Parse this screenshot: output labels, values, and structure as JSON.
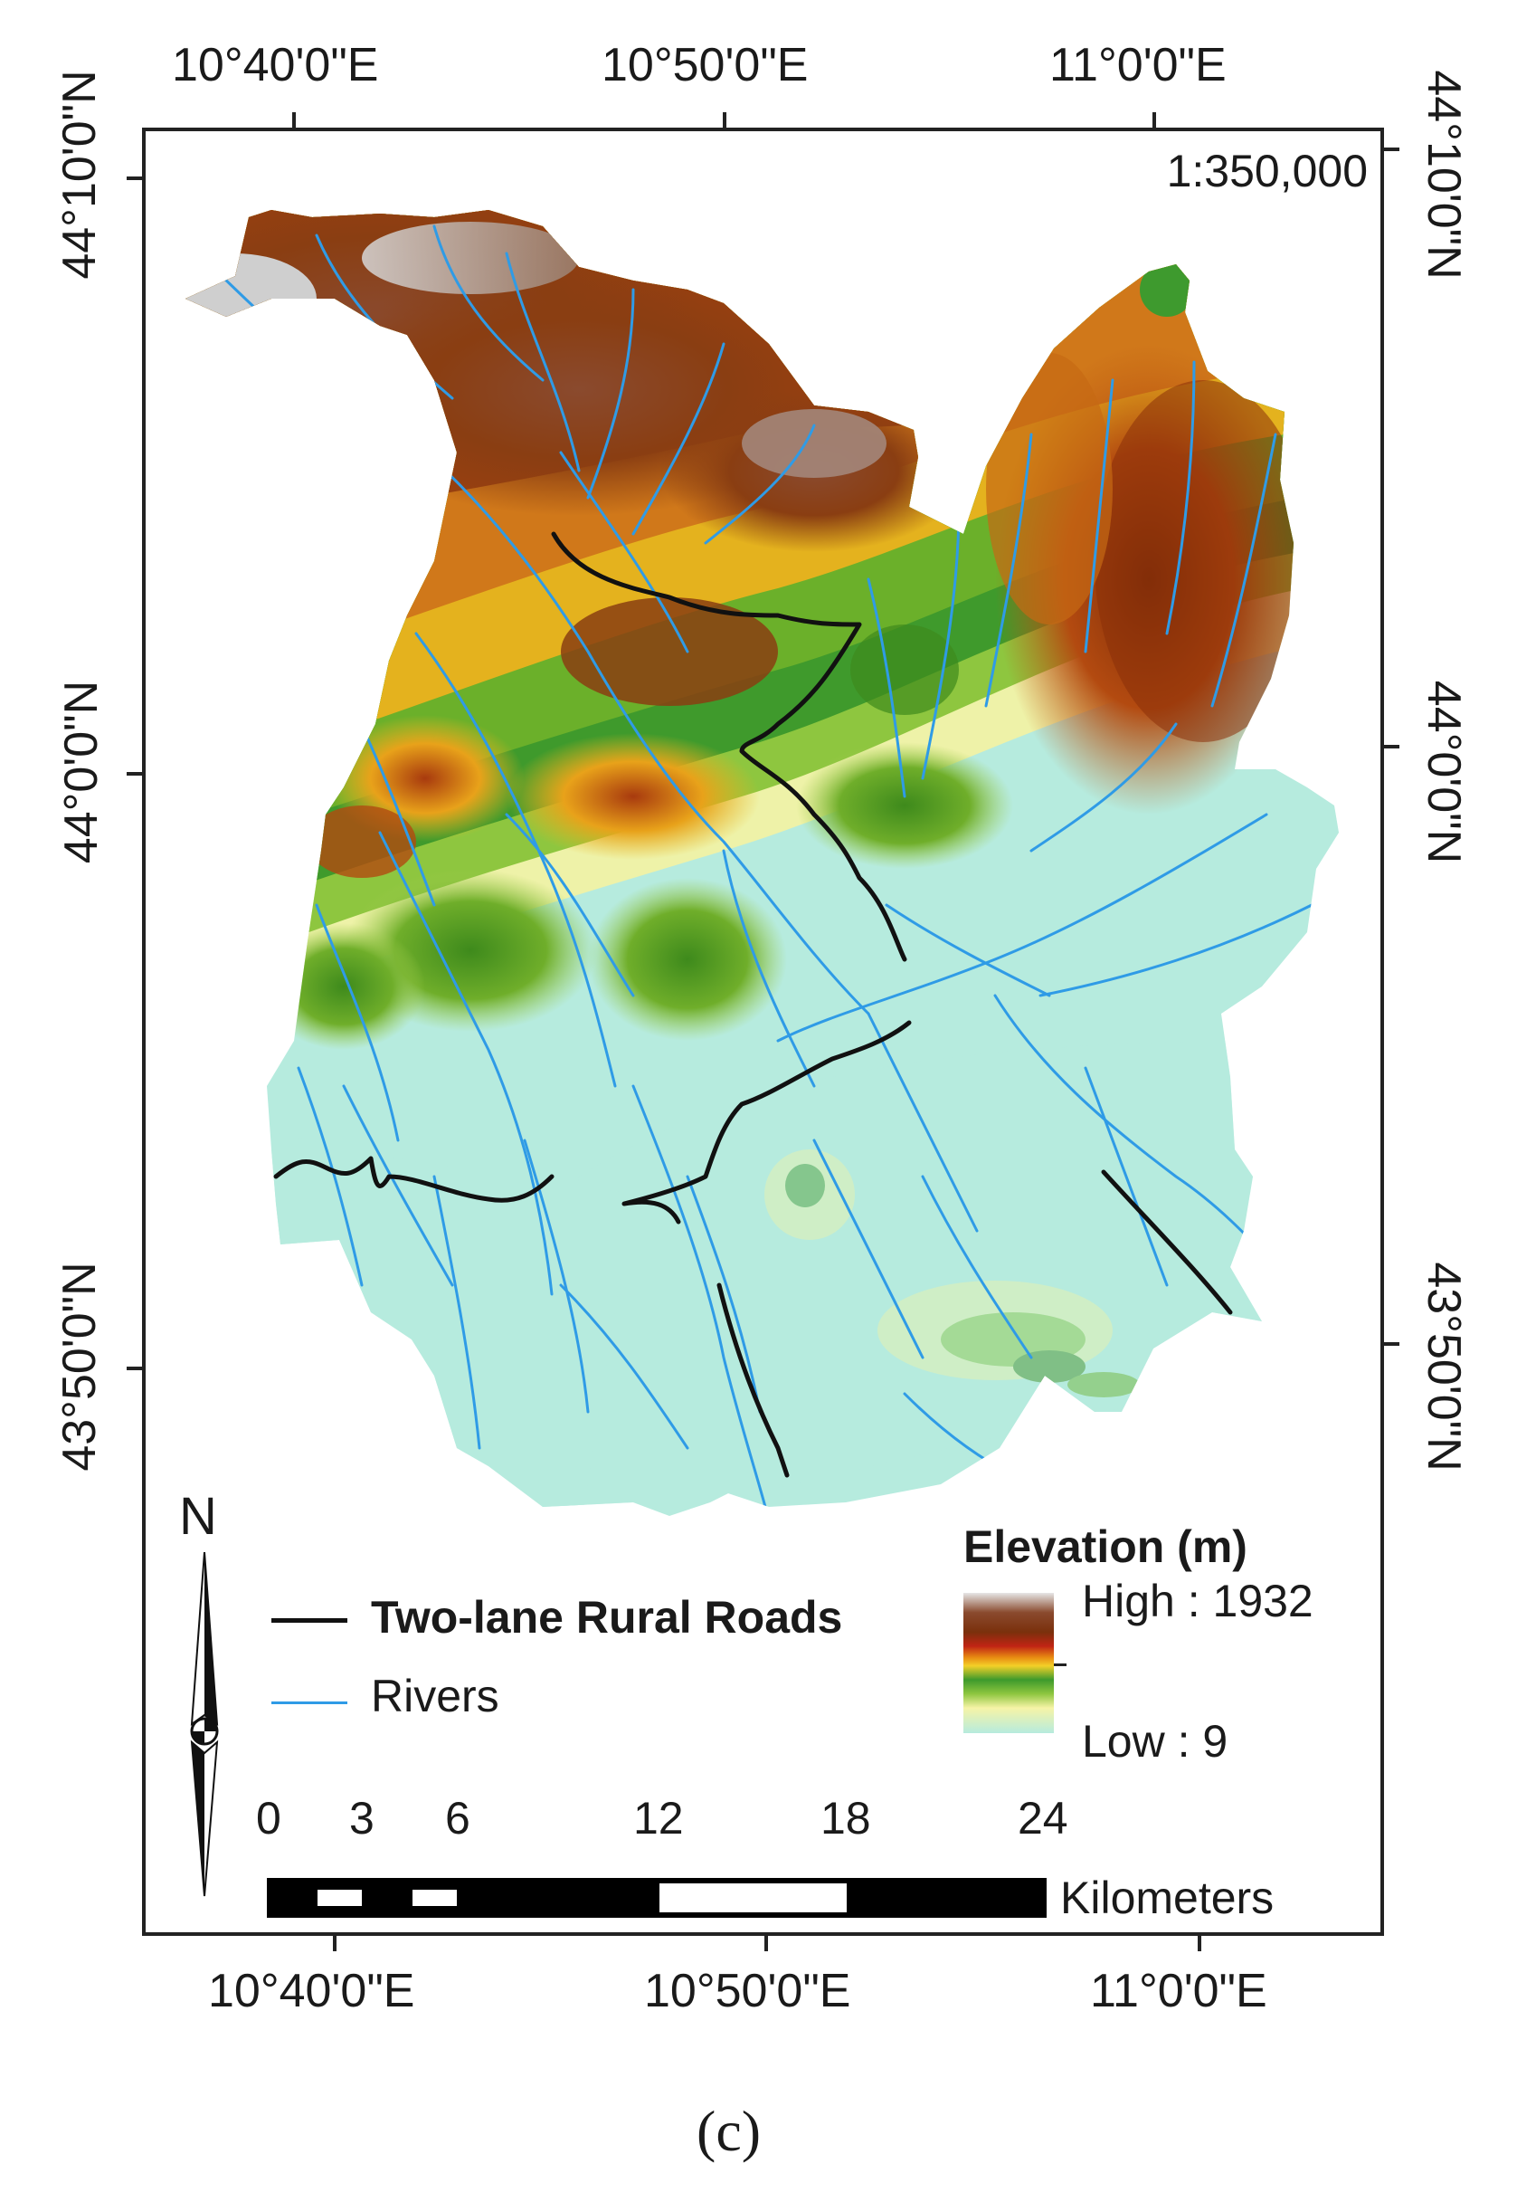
{
  "map": {
    "scale_ratio": "1:350,000",
    "top_longitudes": [
      "10°40'0\"E",
      "10°50'0\"E",
      "11°0'0\"E"
    ],
    "bottom_longitudes": [
      "10°40'0\"E",
      "10°50'0\"E",
      "11°0'0\"E"
    ],
    "left_latitudes": [
      "44°10'0\"N",
      "44°0'0\"N",
      "43°50'0\"N"
    ],
    "right_latitudes": [
      "44°10'0\"N",
      "44°0'0\"N",
      "43°50'0\"N"
    ]
  },
  "north_arrow": {
    "label": "N"
  },
  "legend": {
    "roads_label": "Two-lane Rural Roads",
    "rivers_label": "Rivers",
    "elevation_title": "Elevation (m)",
    "elevation_high": "High : 1932",
    "elevation_low": "Low : 9",
    "road_color": "#111111",
    "river_color": "#2f9be6"
  },
  "scalebar": {
    "ticks": [
      "0",
      "3",
      "6",
      "12",
      "18",
      "24"
    ],
    "unit": "Kilometers"
  },
  "caption": "(c)"
}
